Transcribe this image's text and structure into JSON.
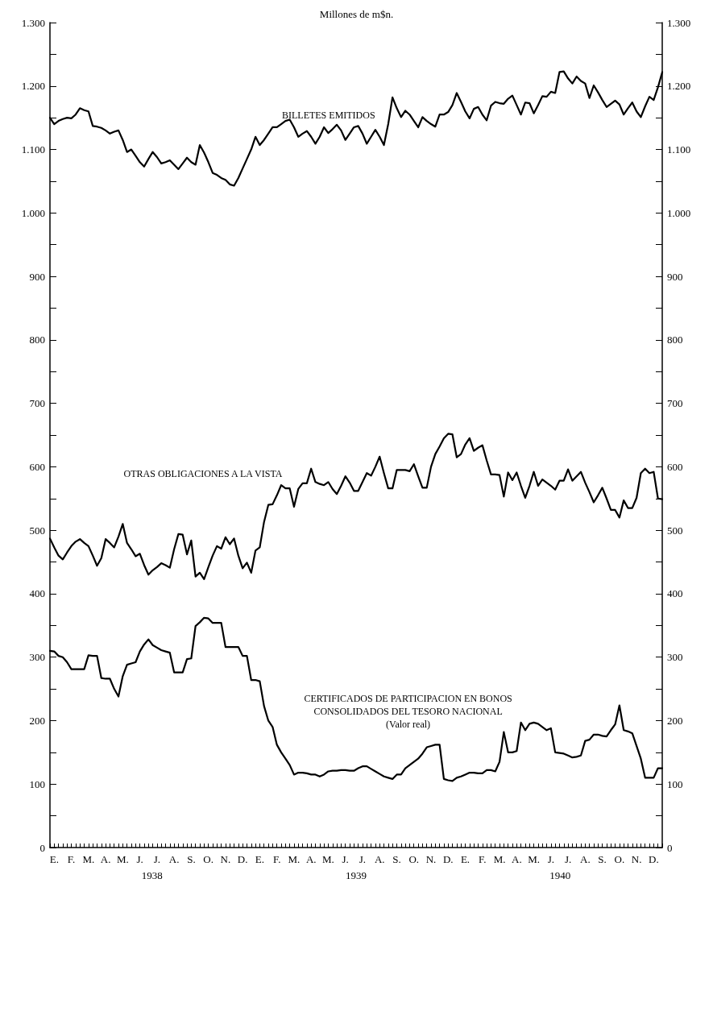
{
  "chart_data": {
    "type": "line",
    "title": "Millones de m$n.",
    "categories": [
      null,
      "E.",
      null,
      null,
      null,
      "F.",
      null,
      null,
      null,
      "M.",
      null,
      null,
      null,
      "A.",
      null,
      null,
      null,
      "M.",
      null,
      null,
      null,
      "J.",
      null,
      null,
      null,
      "J.",
      null,
      null,
      null,
      "A.",
      null,
      null,
      null,
      "S.",
      null,
      null,
      null,
      "O.",
      null,
      null,
      null,
      "N.",
      null,
      null,
      null,
      "D.",
      null,
      null,
      null,
      "E.",
      null,
      null,
      null,
      "F.",
      null,
      null,
      null,
      "M.",
      null,
      null,
      null,
      "A.",
      null,
      null,
      null,
      "M.",
      null,
      null,
      null,
      "J.",
      null,
      null,
      null,
      "J.",
      null,
      null,
      null,
      "A.",
      null,
      null,
      null,
      "S.",
      null,
      null,
      null,
      "O.",
      null,
      null,
      null,
      "N.",
      null,
      null,
      null,
      "D.",
      null,
      null,
      null,
      "E.",
      null,
      null,
      null,
      "F.",
      null,
      null,
      null,
      "M.",
      null,
      null,
      null,
      "A.",
      null,
      null,
      null,
      "M.",
      null,
      null,
      null,
      "J.",
      null,
      null,
      null,
      "J.",
      null,
      null,
      null,
      "A.",
      null,
      null,
      null,
      "S.",
      null,
      null,
      null,
      "O.",
      null,
      null,
      null,
      "N.",
      null,
      null,
      null,
      "D.",
      null,
      null
    ],
    "annotations": [
      "1938",
      "1939",
      "1940"
    ],
    "ylim": [
      0,
      1300
    ],
    "yticks": [
      0,
      {
        "value": 50,
        "label": null
      },
      100,
      {
        "value": 150,
        "label": null
      },
      200,
      {
        "value": 250,
        "label": null
      },
      300,
      {
        "value": 350,
        "label": null
      },
      400,
      {
        "value": 450,
        "label": null
      },
      500,
      {
        "value": 550,
        "label": null
      },
      600,
      {
        "value": 650,
        "label": null
      },
      700,
      {
        "value": 750,
        "label": null
      },
      800,
      {
        "value": 850,
        "label": null
      },
      900,
      {
        "value": 950,
        "label": null
      },
      {
        "value": 1000,
        "label": "1.000"
      },
      {
        "value": 1050,
        "label": null
      },
      {
        "value": 1100,
        "label": "1.100"
      },
      {
        "value": 1150,
        "label": null
      },
      {
        "value": 1200,
        "label": "1.200"
      },
      {
        "value": 1250,
        "label": null
      },
      {
        "value": 1300,
        "label": "1.300"
      }
    ],
    "y2lim": [
      0,
      1300
    ],
    "y2ticks": [
      0,
      {
        "value": 50,
        "label": null
      },
      100,
      {
        "value": 150,
        "label": null
      },
      200,
      {
        "value": 250,
        "label": null
      },
      300,
      {
        "value": 350,
        "label": null
      },
      400,
      {
        "value": 450,
        "label": null
      },
      500,
      {
        "value": 550,
        "label": null
      },
      600,
      {
        "value": 650,
        "label": null
      },
      700,
      {
        "value": 750,
        "label": null
      },
      800,
      {
        "value": 850,
        "label": null
      },
      900,
      {
        "value": 950,
        "label": null
      },
      {
        "value": 1000,
        "label": "1.000"
      },
      {
        "value": 1050,
        "label": null
      },
      {
        "value": 1100,
        "label": "1.100"
      },
      {
        "value": 1150,
        "label": null
      },
      {
        "value": 1200,
        "label": "1.200"
      },
      {
        "value": 1250,
        "label": null
      },
      {
        "value": 1300,
        "label": "1.300"
      }
    ],
    "grid": false,
    "legend": false,
    "marker": "none",
    "line_style": "solid",
    "series": [
      {
        "name": "BILLETES EMITIDOS",
        "color": "#000000",
        "values": [
          1150,
          1140,
          1145,
          1148,
          1150,
          1149,
          1155,
          1165,
          1162,
          1160,
          1137,
          1136,
          1134,
          1130,
          1125,
          1128,
          1130,
          1115,
          1096,
          1100,
          1090,
          1080,
          1073,
          1085,
          1096,
          1088,
          1078,
          1080,
          1083,
          1076,
          1069,
          1078,
          1087,
          1080,
          1076,
          1107,
          1095,
          1080,
          1063,
          1060,
          1055,
          1052,
          1045,
          1043,
          1055,
          1070,
          1085,
          1100,
          1120,
          1107,
          1115,
          1125,
          1135,
          1135,
          1140,
          1145,
          1147,
          1135,
          1120,
          1125,
          1129,
          1120,
          1109,
          1120,
          1135,
          1126,
          1132,
          1139,
          1130,
          1115,
          1125,
          1135,
          1137,
          1125,
          1109,
          1120,
          1131,
          1120,
          1107,
          1140,
          1182,
          1165,
          1151,
          1161,
          1155,
          1145,
          1135,
          1151,
          1145,
          1140,
          1136,
          1155,
          1155,
          1159,
          1170,
          1189,
          1175,
          1160,
          1149,
          1164,
          1167,
          1155,
          1146,
          1169,
          1175,
          1173,
          1172,
          1180,
          1185,
          1170,
          1155,
          1174,
          1173,
          1157,
          1170,
          1184,
          1183,
          1191,
          1189,
          1222,
          1223,
          1212,
          1204,
          1215,
          1208,
          1204,
          1181,
          1201,
          1190,
          1178,
          1167,
          1172,
          1177,
          1171,
          1155,
          1165,
          1174,
          1160,
          1151,
          1168,
          1183,
          1178,
          1198,
          1222
        ]
      },
      {
        "name": "OTRAS OBLIGACIONES A LA VISTA",
        "color": "#000000",
        "values": [
          487,
          473,
          460,
          454,
          465,
          475,
          482,
          486,
          480,
          475,
          460,
          444,
          456,
          486,
          480,
          473,
          490,
          510,
          480,
          470,
          459,
          463,
          445,
          430,
          437,
          442,
          448,
          445,
          441,
          470,
          494,
          493,
          462,
          484,
          427,
          433,
          423,
          442,
          460,
          475,
          471,
          489,
          478,
          487,
          460,
          440,
          449,
          433,
          468,
          473,
          513,
          540,
          541,
          555,
          571,
          566,
          566,
          537,
          565,
          574,
          574,
          597,
          576,
          573,
          571,
          576,
          565,
          557,
          570,
          585,
          575,
          562,
          562,
          576,
          590,
          586,
          600,
          616,
          590,
          566,
          566,
          595,
          595,
          595,
          593,
          604,
          585,
          567,
          567,
          600,
          620,
          632,
          645,
          652,
          651,
          615,
          620,
          635,
          645,
          625,
          630,
          634,
          610,
          588,
          588,
          587,
          553,
          591,
          579,
          591,
          570,
          551,
          570,
          592,
          570,
          580,
          575,
          570,
          564,
          578,
          578,
          596,
          578,
          585,
          592,
          575,
          560,
          544,
          555,
          567,
          550,
          532,
          532,
          520,
          547,
          535,
          535,
          551,
          590,
          597,
          590,
          592,
          550,
          549
        ]
      },
      {
        "name": "CERTIFICADOS DE PARTICIPACION EN BONOS\nCONSOLIDADOS DEL TESORO NACIONAL\n(Valor real)",
        "color": "#000000",
        "values": [
          310,
          309,
          302,
          300,
          292,
          281,
          281,
          281,
          281,
          303,
          302,
          302,
          267,
          266,
          266,
          250,
          238,
          270,
          288,
          290,
          292,
          309,
          320,
          328,
          319,
          315,
          311,
          309,
          307,
          276,
          276,
          276,
          297,
          298,
          349,
          355,
          362,
          361,
          354,
          354,
          354,
          316,
          316,
          316,
          316,
          302,
          302,
          264,
          264,
          262,
          223,
          200,
          190,
          162,
          150,
          140,
          130,
          115,
          118,
          118,
          117,
          115,
          115,
          112,
          115,
          120,
          121,
          121,
          122,
          122,
          121,
          121,
          125,
          128,
          128,
          124,
          120,
          116,
          112,
          110,
          108,
          115,
          115,
          125,
          130,
          135,
          140,
          148,
          158,
          160,
          162,
          162,
          108,
          106,
          105,
          110,
          112,
          115,
          118,
          118,
          117,
          117,
          122,
          122,
          120,
          135,
          182,
          150,
          150,
          152,
          197,
          185,
          195,
          197,
          195,
          190,
          185,
          188,
          150,
          149,
          148,
          145,
          142,
          143,
          145,
          168,
          170,
          178,
          178,
          176,
          175,
          185,
          194,
          224,
          185,
          183,
          180,
          160,
          140,
          110,
          110,
          110,
          125,
          125
        ]
      }
    ]
  }
}
